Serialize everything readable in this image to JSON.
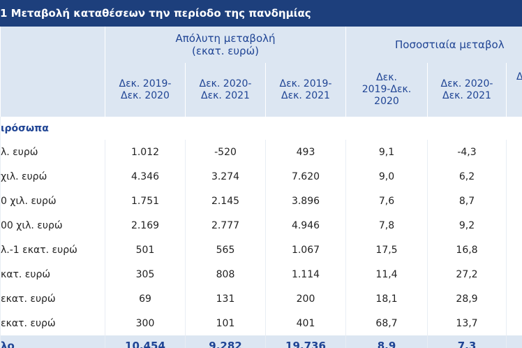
{
  "title": "1 Μεταβολή καταθέσεων την περίοδο της πανδημίας",
  "header": {
    "groups": [
      "Απόλυτη μεταβολή\n(εκατ. ευρώ)",
      "Ποσοστιαία μεταβολ"
    ],
    "columns": [
      "Δεκ. 2019-\nΔεκ. 2020",
      "Δεκ. 2020-\nΔεκ. 2021",
      "Δεκ. 2019-\nΔεκ. 2021",
      "Δεκ.\n2019-Δεκ.\n2020",
      "Δεκ. 2020-\nΔεκ. 2021",
      "Δ"
    ]
  },
  "section": "ιρόσωπα",
  "rows": [
    [
      "λ. ευρώ",
      "1.012",
      "-520",
      "493",
      "9,1",
      "-4,3"
    ],
    [
      "χιλ. ευρώ",
      "4.346",
      "3.274",
      "7.620",
      "9,0",
      "6,2"
    ],
    [
      "0 χιλ. ευρώ",
      "1.751",
      "2.145",
      "3.896",
      "7,6",
      "8,7"
    ],
    [
      "00 χιλ. ευρώ",
      "2.169",
      "2.777",
      "4.946",
      "7,8",
      "9,2"
    ],
    [
      "λ.-1 εκατ. ευρώ",
      "501",
      "565",
      "1.067",
      "17,5",
      "16,8"
    ],
    [
      "κατ. ευρώ",
      "305",
      "808",
      "1.114",
      "11,4",
      "27,2"
    ],
    [
      "εκατ. ευρώ",
      "69",
      "131",
      "200",
      "18,1",
      "28,9"
    ],
    [
      "εκατ. ευρώ",
      "300",
      "101",
      "401",
      "68,7",
      "13,7"
    ]
  ],
  "total": [
    "λο",
    "10.454",
    "9.282",
    "19.736",
    "8,9",
    "7,3"
  ]
}
